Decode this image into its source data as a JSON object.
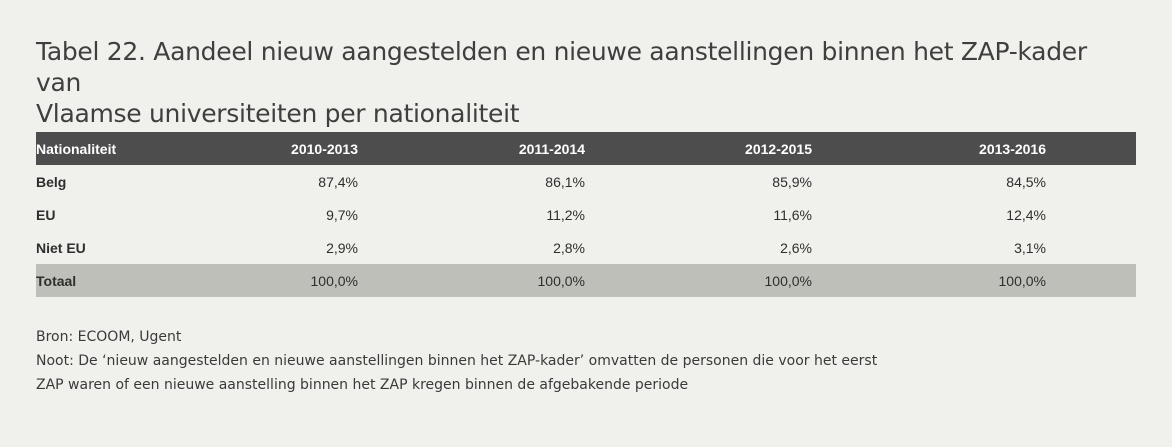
{
  "title": {
    "line1": "Tabel 22. Aandeel nieuw aangestelden en nieuwe aanstellingen binnen het ZAP-kader van",
    "line2": "Vlaamse universiteiten per nationaliteit"
  },
  "table": {
    "headers": [
      "Nationaliteit",
      "2010-2013",
      "2011-2014",
      "2012-2015",
      "2013-2016"
    ],
    "rows": [
      {
        "label": "Belg",
        "values": [
          "87,4%",
          "86,1%",
          "85,9%",
          "84,5%"
        ]
      },
      {
        "label": "EU",
        "values": [
          "9,7%",
          "11,2%",
          "11,6%",
          "12,4%"
        ]
      },
      {
        "label": "Niet EU",
        "values": [
          "2,9%",
          "2,8%",
          "2,6%",
          "3,1%"
        ]
      },
      {
        "label": "Totaal",
        "values": [
          "100,0%",
          "100,0%",
          "100,0%",
          "100,0%"
        ]
      }
    ]
  },
  "footer": {
    "source": "Bron: ECOOM, Ugent",
    "note_line1": "Noot: De ‘nieuw aangestelden en nieuwe aanstellingen binnen het ZAP-kader’ omvatten de personen die voor het eerst",
    "note_line2": "ZAP waren of een nieuwe aanstelling binnen het ZAP kregen binnen de afgebakende periode"
  },
  "colors": {
    "background": "#f0f0ec",
    "header_bg": "#4d4d4d",
    "total_row_bg": "#bfbfba"
  }
}
